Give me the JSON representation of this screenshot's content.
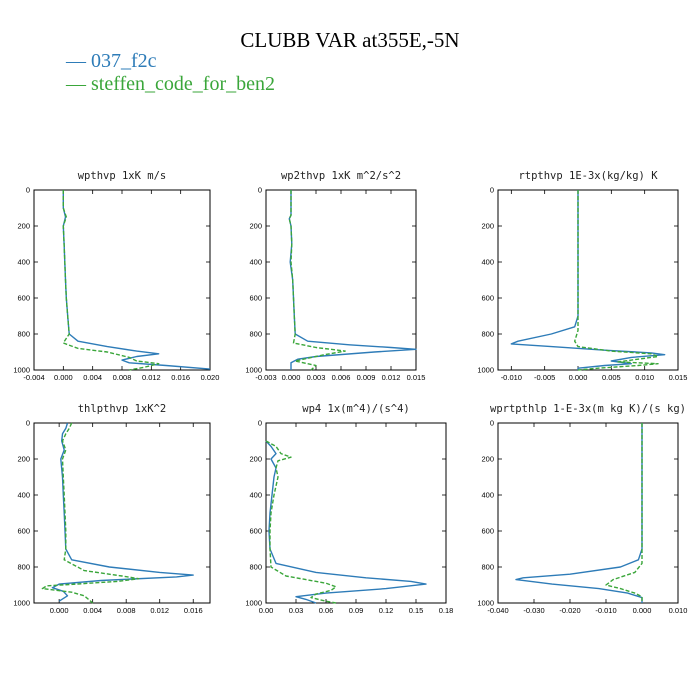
{
  "figure": {
    "title": "CLUBB VAR at355E,-5N",
    "legend": [
      {
        "label": "037_f2c",
        "color": "#2e7cb8",
        "dash": "solid"
      },
      {
        "label": "steffen_code_for_ben2",
        "color": "#3aa63a",
        "dash": "dashed"
      }
    ]
  },
  "chart_data": [
    {
      "type": "line",
      "title": "wpthvp  1xK m/s",
      "xlim": [
        -0.004,
        0.02
      ],
      "xticks": [
        "-0.004",
        "0.000",
        "0.004",
        "0.008",
        "0.012",
        "0.016",
        "0.020"
      ],
      "ylim": [
        0,
        1000
      ],
      "yticks": [
        "0",
        "200",
        "400",
        "600",
        "800",
        "1000"
      ],
      "y_reversed": true,
      "series": [
        {
          "name": "037_f2c",
          "points": [
            [
              0.0,
              0
            ],
            [
              0.0,
              100
            ],
            [
              0.0003,
              150
            ],
            [
              0.0,
              200
            ],
            [
              0.0001,
              300
            ],
            [
              0.0002,
              400
            ],
            [
              0.0003,
              500
            ],
            [
              0.0004,
              600
            ],
            [
              0.0006,
              700
            ],
            [
              0.0008,
              800
            ],
            [
              0.002,
              840
            ],
            [
              0.006,
              870
            ],
            [
              0.01,
              895
            ],
            [
              0.013,
              910
            ],
            [
              0.01,
              925
            ],
            [
              0.008,
              945
            ],
            [
              0.009,
              960
            ],
            [
              0.014,
              975
            ],
            [
              0.02,
              995
            ]
          ]
        },
        {
          "name": "steffen_code_for_ben2",
          "points": [
            [
              0.0,
              0
            ],
            [
              0.0,
              100
            ],
            [
              0.0004,
              150
            ],
            [
              0.0,
              200
            ],
            [
              0.0001,
              300
            ],
            [
              0.0002,
              400
            ],
            [
              0.0003,
              500
            ],
            [
              0.0004,
              600
            ],
            [
              0.0006,
              700
            ],
            [
              0.0008,
              800
            ],
            [
              0.0,
              850
            ],
            [
              0.002,
              880
            ],
            [
              0.006,
              900
            ],
            [
              0.009,
              930
            ],
            [
              0.01,
              950
            ],
            [
              0.013,
              965
            ],
            [
              0.011,
              985
            ],
            [
              0.009,
              1000
            ]
          ]
        }
      ]
    },
    {
      "type": "line",
      "title": "wp2thvp  1xK m^2/s^2",
      "xlim": [
        -0.003,
        0.015
      ],
      "xticks": [
        "-0.003",
        "0.000",
        "0.003",
        "0.006",
        "0.009",
        "0.012",
        "0.015"
      ],
      "ylim": [
        0,
        1000
      ],
      "yticks": [
        "0",
        "200",
        "400",
        "600",
        "800",
        "1000"
      ],
      "y_reversed": true,
      "series": [
        {
          "name": "037_f2c",
          "points": [
            [
              0.0,
              0
            ],
            [
              0.0,
              140
            ],
            [
              -0.0002,
              160
            ],
            [
              0.0,
              200
            ],
            [
              0.0001,
              300
            ],
            [
              -0.0001,
              400
            ],
            [
              0.0002,
              500
            ],
            [
              0.0003,
              600
            ],
            [
              0.0004,
              700
            ],
            [
              0.0005,
              800
            ],
            [
              0.002,
              840
            ],
            [
              0.007,
              860
            ],
            [
              0.012,
              875
            ],
            [
              0.015,
              885
            ],
            [
              0.01,
              900
            ],
            [
              0.003,
              925
            ],
            [
              0.0008,
              940
            ],
            [
              0.0,
              960
            ],
            [
              0.0,
              1000
            ]
          ]
        },
        {
          "name": "steffen_code_for_ben2",
          "points": [
            [
              0.0,
              0
            ],
            [
              0.0,
              140
            ],
            [
              -0.0002,
              160
            ],
            [
              0.0,
              200
            ],
            [
              0.0001,
              300
            ],
            [
              0.0,
              400
            ],
            [
              0.0002,
              500
            ],
            [
              0.0003,
              600
            ],
            [
              0.0004,
              700
            ],
            [
              0.0005,
              800
            ],
            [
              0.0003,
              850
            ],
            [
              0.003,
              875
            ],
            [
              0.0065,
              895
            ],
            [
              0.004,
              915
            ],
            [
              0.002,
              935
            ],
            [
              0.0005,
              950
            ],
            [
              0.003,
              975
            ],
            [
              0.0024,
              1000
            ]
          ]
        }
      ]
    },
    {
      "type": "line",
      "title": "rtpthvp  1E-3x(kg/kg) K",
      "xlim": [
        -0.012,
        0.015
      ],
      "xticks": [
        "-0.010",
        "-0.005",
        "0.000",
        "0.005",
        "0.010",
        "0.015"
      ],
      "ylim": [
        0,
        1000
      ],
      "yticks": [
        "0",
        "200",
        "400",
        "600",
        "800",
        "1000"
      ],
      "y_reversed": true,
      "series": [
        {
          "name": "037_f2c",
          "points": [
            [
              0.0,
              0
            ],
            [
              0.0,
              300
            ],
            [
              0.0,
              500
            ],
            [
              0.0,
              700
            ],
            [
              -0.0005,
              760
            ],
            [
              -0.004,
              800
            ],
            [
              -0.009,
              840
            ],
            [
              -0.01,
              855
            ],
            [
              -0.004,
              870
            ],
            [
              0.004,
              890
            ],
            [
              0.011,
              905
            ],
            [
              0.013,
              915
            ],
            [
              0.008,
              930
            ],
            [
              0.005,
              950
            ],
            [
              0.008,
              965
            ],
            [
              0.004,
              975
            ],
            [
              0.0,
              990
            ],
            [
              0.0,
              1000
            ]
          ]
        },
        {
          "name": "steffen_code_for_ben2",
          "points": [
            [
              0.0,
              0
            ],
            [
              0.0,
              300
            ],
            [
              0.0,
              500
            ],
            [
              0.0,
              700
            ],
            [
              0.0,
              780
            ],
            [
              -0.0005,
              840
            ],
            [
              0.0,
              870
            ],
            [
              0.005,
              895
            ],
            [
              0.011,
              910
            ],
            [
              0.012,
              925
            ],
            [
              0.009,
              940
            ],
            [
              0.006,
              955
            ],
            [
              0.012,
              965
            ],
            [
              0.009,
              975
            ],
            [
              0.003,
              990
            ],
            [
              0.0,
              1000
            ]
          ]
        }
      ]
    },
    {
      "type": "line",
      "title": "thlpthvp  1xK^2",
      "xlim": [
        -0.003,
        0.018
      ],
      "xticks": [
        "0.000",
        "0.004",
        "0.008",
        "0.012",
        "0.016"
      ],
      "ylim": [
        0,
        1000
      ],
      "yticks": [
        "0",
        "200",
        "400",
        "600",
        "800",
        "1000"
      ],
      "y_reversed": true,
      "series": [
        {
          "name": "037_f2c",
          "points": [
            [
              0.001,
              0
            ],
            [
              0.0008,
              30
            ],
            [
              0.0004,
              60
            ],
            [
              0.0003,
              100
            ],
            [
              0.0006,
              150
            ],
            [
              0.0002,
              200
            ],
            [
              0.0004,
              300
            ],
            [
              0.0005,
              400
            ],
            [
              0.0006,
              500
            ],
            [
              0.0007,
              600
            ],
            [
              0.0008,
              700
            ],
            [
              0.0015,
              760
            ],
            [
              0.006,
              800
            ],
            [
              0.012,
              830
            ],
            [
              0.016,
              845
            ],
            [
              0.014,
              855
            ],
            [
              0.005,
              875
            ],
            [
              0.0,
              895
            ],
            [
              -0.0008,
              915
            ],
            [
              0.0005,
              935
            ],
            [
              0.001,
              960
            ],
            [
              0.0,
              990
            ]
          ]
        },
        {
          "name": "steffen_code_for_ben2",
          "points": [
            [
              0.0015,
              0
            ],
            [
              0.0012,
              30
            ],
            [
              0.0008,
              60
            ],
            [
              0.0004,
              100
            ],
            [
              0.0008,
              150
            ],
            [
              0.0004,
              200
            ],
            [
              0.0005,
              300
            ],
            [
              0.0006,
              400
            ],
            [
              0.0007,
              500
            ],
            [
              0.0008,
              600
            ],
            [
              0.0008,
              700
            ],
            [
              0.0006,
              760
            ],
            [
              0.003,
              820
            ],
            [
              0.0075,
              850
            ],
            [
              0.0095,
              865
            ],
            [
              0.007,
              880
            ],
            [
              0.002,
              895
            ],
            [
              -0.0015,
              905
            ],
            [
              -0.002,
              920
            ],
            [
              0.0015,
              940
            ],
            [
              0.003,
              960
            ],
            [
              0.004,
              1000
            ]
          ]
        }
      ]
    },
    {
      "type": "line",
      "title": "wp4  1x(m^4)/(s^4)",
      "xlim": [
        0.0,
        0.18
      ],
      "xticks": [
        "0.00",
        "0.03",
        "0.06",
        "0.09",
        "0.12",
        "0.15",
        "0.18"
      ],
      "ylim": [
        0,
        1000
      ],
      "yticks": [
        "0",
        "200",
        "400",
        "600",
        "800",
        "1000"
      ],
      "y_reversed": true,
      "series": [
        {
          "name": "037_f2c",
          "points": [
            [
              0.0,
              100
            ],
            [
              0.005,
              130
            ],
            [
              0.01,
              170
            ],
            [
              0.005,
              200
            ],
            [
              0.01,
              250
            ],
            [
              0.008,
              300
            ],
            [
              0.006,
              400
            ],
            [
              0.004,
              500
            ],
            [
              0.003,
              600
            ],
            [
              0.004,
              700
            ],
            [
              0.01,
              780
            ],
            [
              0.05,
              830
            ],
            [
              0.1,
              860
            ],
            [
              0.145,
              880
            ],
            [
              0.16,
              895
            ],
            [
              0.12,
              920
            ],
            [
              0.06,
              945
            ],
            [
              0.03,
              965
            ],
            [
              0.04,
              980
            ],
            [
              0.05,
              1000
            ]
          ]
        },
        {
          "name": "steffen_code_for_ben2",
          "points": [
            [
              0.0,
              100
            ],
            [
              0.01,
              130
            ],
            [
              0.015,
              170
            ],
            [
              0.025,
              190
            ],
            [
              0.012,
              210
            ],
            [
              0.01,
              250
            ],
            [
              0.012,
              300
            ],
            [
              0.008,
              400
            ],
            [
              0.005,
              500
            ],
            [
              0.004,
              600
            ],
            [
              0.004,
              700
            ],
            [
              0.005,
              800
            ],
            [
              0.02,
              850
            ],
            [
              0.04,
              870
            ],
            [
              0.06,
              890
            ],
            [
              0.07,
              910
            ],
            [
              0.065,
              930
            ],
            [
              0.05,
              950
            ],
            [
              0.045,
              970
            ],
            [
              0.06,
              990
            ],
            [
              0.07,
              1000
            ]
          ]
        }
      ]
    },
    {
      "type": "line",
      "title": "wprtpthlp  1-E-3x(m kg K)/(s kg)",
      "xlim": [
        -0.04,
        0.01
      ],
      "xticks": [
        "-0.040",
        "-0.030",
        "-0.020",
        "-0.010",
        "0.000",
        "0.010"
      ],
      "ylim": [
        0,
        1000
      ],
      "yticks": [
        "0",
        "200",
        "400",
        "600",
        "800",
        "1000"
      ],
      "y_reversed": true,
      "series": [
        {
          "name": "037_f2c",
          "points": [
            [
              0.0,
              0
            ],
            [
              0.0,
              300
            ],
            [
              0.0,
              500
            ],
            [
              0.0,
              700
            ],
            [
              -0.001,
              760
            ],
            [
              -0.006,
              800
            ],
            [
              -0.02,
              840
            ],
            [
              -0.033,
              860
            ],
            [
              -0.035,
              870
            ],
            [
              -0.025,
              895
            ],
            [
              -0.012,
              920
            ],
            [
              -0.004,
              945
            ],
            [
              0.0,
              970
            ],
            [
              0.0,
              1000
            ]
          ]
        },
        {
          "name": "steffen_code_for_ben2",
          "points": [
            [
              0.0,
              0
            ],
            [
              0.0,
              300
            ],
            [
              0.0,
              500
            ],
            [
              0.0,
              700
            ],
            [
              0.0,
              780
            ],
            [
              -0.002,
              830
            ],
            [
              -0.008,
              870
            ],
            [
              -0.01,
              900
            ],
            [
              -0.006,
              920
            ],
            [
              -0.002,
              945
            ],
            [
              0.0,
              965
            ],
            [
              0.0,
              1000
            ]
          ]
        }
      ]
    }
  ]
}
